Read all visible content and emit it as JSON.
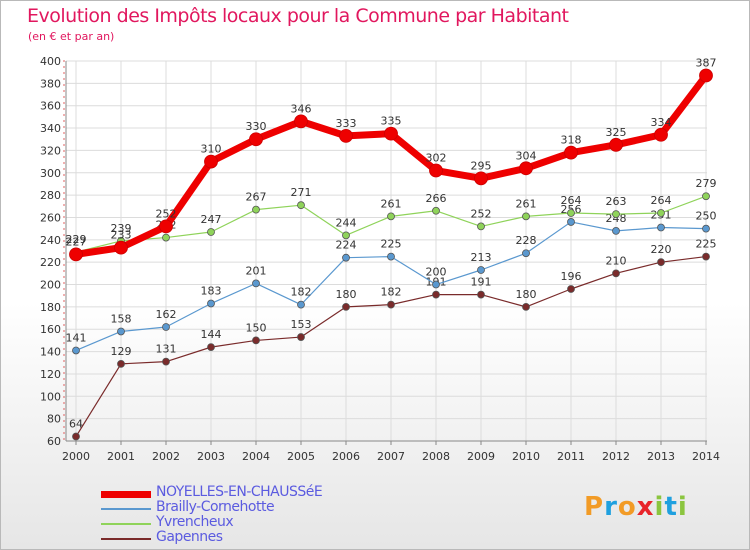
{
  "title": "Evolution des Impôts locaux pour la Commune par Habitant",
  "subtitle": "(en € et par an)",
  "logo": {
    "letters": [
      "P",
      "r",
      "o",
      "x",
      "i",
      "t",
      "i"
    ],
    "colors": [
      "#f29b26",
      "#1fa0df",
      "#f29b26",
      "#e8242a",
      "#8bc53f",
      "#1fa0df",
      "#8bc53f"
    ]
  },
  "chart_data": {
    "type": "line",
    "x": [
      "2000",
      "2001",
      "2002",
      "2003",
      "2004",
      "2005",
      "2006",
      "2007",
      "2008",
      "2009",
      "2010",
      "2011",
      "2012",
      "2013",
      "2014"
    ],
    "ylim": [
      60,
      400
    ],
    "yticks": [
      60,
      80,
      100,
      120,
      140,
      160,
      180,
      200,
      220,
      240,
      260,
      280,
      300,
      320,
      340,
      360,
      380,
      400
    ],
    "grid": true,
    "legend_position": "bottom-left",
    "series": [
      {
        "name": "NOYELLES-EN-CHAUSSéE",
        "color": "#ee0000",
        "width": 7,
        "values": [
          227,
          233,
          252,
          310,
          330,
          346,
          333,
          335,
          302,
          295,
          304,
          318,
          325,
          334,
          387
        ]
      },
      {
        "name": "Brailly-Cornehotte",
        "color": "#5a98cf",
        "width": 1.2,
        "values": [
          141,
          158,
          162,
          183,
          201,
          182,
          224,
          225,
          200,
          213,
          228,
          256,
          248,
          251,
          250
        ]
      },
      {
        "name": "Yvrencheux",
        "color": "#8fd35a",
        "width": 1.2,
        "values": [
          229,
          239,
          242,
          247,
          267,
          271,
          244,
          261,
          266,
          252,
          261,
          264,
          263,
          264,
          279
        ]
      },
      {
        "name": "Gapennes",
        "color": "#7a2b2b",
        "width": 1.2,
        "values": [
          64,
          129,
          131,
          144,
          150,
          153,
          180,
          182,
          191,
          191,
          180,
          196,
          210,
          220,
          225
        ]
      }
    ]
  }
}
